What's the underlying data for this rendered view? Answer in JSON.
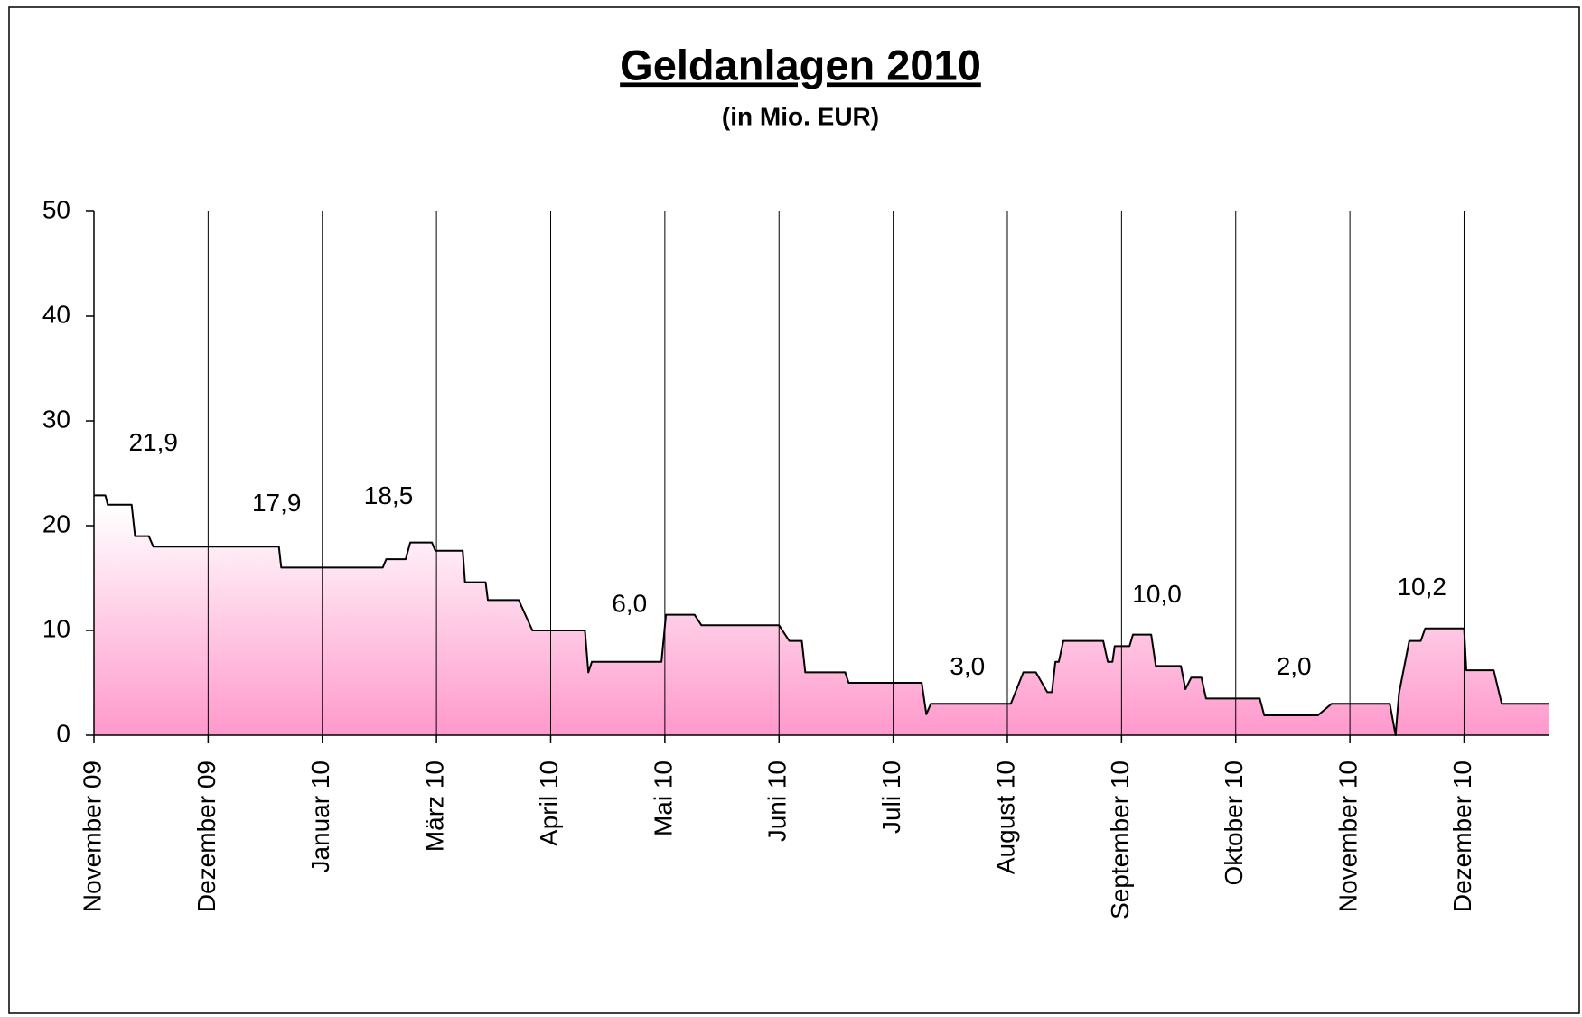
{
  "chart_data": {
    "type": "area",
    "title": "Geldanlagen 2010",
    "subtitle": "(in Mio. EUR)",
    "color": "#ff99cc",
    "line_color": "#000000",
    "grid": true,
    "xlim": [
      0,
      12.74
    ],
    "xticks": [
      {
        "value": 0,
        "label": "November 09"
      },
      {
        "value": 1,
        "label": "Dezember 09"
      },
      {
        "value": 2,
        "label": "Januar 10"
      },
      {
        "value": 3,
        "label": "März 10"
      },
      {
        "value": 4,
        "label": "April 10"
      },
      {
        "value": 5,
        "label": "Mai 10"
      },
      {
        "value": 6,
        "label": "Juni 10"
      },
      {
        "value": 7,
        "label": "Juli 10"
      },
      {
        "value": 8,
        "label": "August 10"
      },
      {
        "value": 9,
        "label": "September 10"
      },
      {
        "value": 10,
        "label": "Oktober 10"
      },
      {
        "value": 11,
        "label": "November 10"
      },
      {
        "value": 12,
        "label": "Dezember 10"
      }
    ],
    "ylim": [
      0,
      50
    ],
    "yticks": [
      0,
      10,
      20,
      30,
      40,
      50
    ],
    "x": [
      0,
      0.1,
      0.12,
      0.33,
      0.36,
      0.48,
      0.52,
      1.62,
      1.64,
      2.53,
      2.56,
      2.73,
      2.77,
      2.96,
      2.99,
      3.23,
      3.25,
      3.43,
      3.45,
      3.72,
      3.84,
      4.3,
      4.33,
      4.36,
      4.97,
      5.01,
      5.26,
      5.32,
      6.0,
      6.09,
      6.2,
      6.23,
      6.58,
      6.61,
      7.25,
      7.29,
      7.33,
      8.03,
      8.14,
      8.25,
      8.35,
      8.39,
      8.42,
      8.45,
      8.49,
      8.84,
      8.88,
      8.92,
      8.94,
      9.07,
      9.1,
      9.26,
      9.3,
      9.52,
      9.56,
      9.61,
      9.7,
      9.74,
      10.21,
      10.25,
      10.72,
      10.84,
      11.35,
      11.4,
      11.43,
      11.52,
      11.62,
      11.66,
      12.0,
      12.02,
      12.26,
      12.33,
      12.74
    ],
    "values": [
      22.9,
      22.9,
      22,
      22,
      19,
      19,
      18,
      18,
      16,
      16,
      16.8,
      16.8,
      18.4,
      18.4,
      17.6,
      17.6,
      14.6,
      14.6,
      12.9,
      12.9,
      10,
      10,
      6,
      7,
      7,
      11.5,
      11.5,
      10.5,
      10.5,
      9,
      9,
      6,
      6,
      5,
      5,
      2,
      3,
      3,
      6,
      6,
      4.1,
      4.1,
      7,
      7,
      9,
      9,
      7,
      7,
      8.5,
      8.5,
      9.6,
      9.6,
      6.6,
      6.6,
      4.4,
      5.5,
      5.5,
      3.5,
      3.5,
      1.9,
      1.9,
      3,
      3,
      0,
      4,
      9,
      9,
      10.2,
      10.2,
      6.2,
      6.2,
      3,
      3
    ],
    "annotations": [
      {
        "text": "21,9",
        "x": 0.52,
        "y": 27.8
      },
      {
        "text": "17,9",
        "x": 1.6,
        "y": 22.0
      },
      {
        "text": "18,5",
        "x": 2.58,
        "y": 22.7
      },
      {
        "text": "6,0",
        "x": 4.69,
        "y": 12.4
      },
      {
        "text": "3,0",
        "x": 7.65,
        "y": 6.4
      },
      {
        "text": "10,0",
        "x": 9.31,
        "y": 13.3
      },
      {
        "text": "2,0",
        "x": 10.51,
        "y": 6.4
      },
      {
        "text": "10,2",
        "x": 11.63,
        "y": 14.0
      }
    ]
  }
}
